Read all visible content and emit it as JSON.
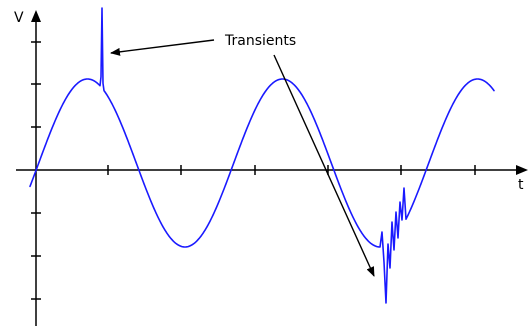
{
  "axes": {
    "y_label": "V",
    "x_label": "t"
  },
  "annotation": {
    "text": "Transients"
  },
  "colors": {
    "waveform": "#1a1aff",
    "axes": "#000000"
  }
}
